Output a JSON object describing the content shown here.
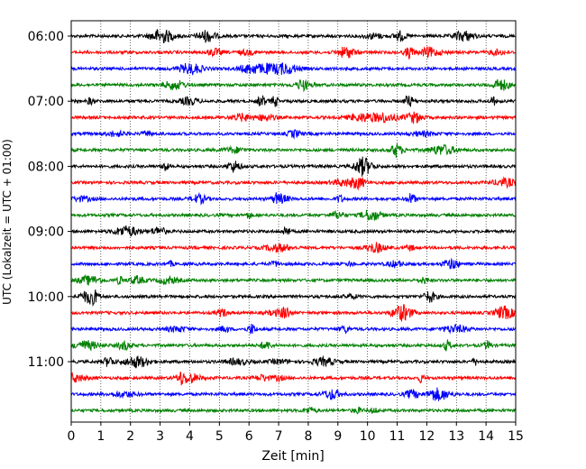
{
  "chart_data": {
    "type": "line",
    "title": "",
    "xlabel": "Zeit  [min]",
    "ylabel": "UTC (Lokalzeit = UTC + 01:00)",
    "xlim": [
      0,
      15
    ],
    "x_ticks": [
      "0",
      "1",
      "2",
      "3",
      "4",
      "5",
      "6",
      "7",
      "8",
      "9",
      "10",
      "11",
      "12",
      "13",
      "14",
      "15"
    ],
    "y_tick_labels": [
      "06:00",
      "07:00",
      "08:00",
      "09:00",
      "10:00",
      "11:00"
    ],
    "grid": "vertical dotted",
    "trace_interval_min": 15,
    "start_time": "06:00",
    "trace_colors": [
      "#000000",
      "#ff0000",
      "#0000ff",
      "#008000"
    ],
    "traces": [
      {
        "start": "06:00",
        "color": "#000000"
      },
      {
        "start": "06:15",
        "color": "#ff0000"
      },
      {
        "start": "06:30",
        "color": "#0000ff"
      },
      {
        "start": "06:45",
        "color": "#008000"
      },
      {
        "start": "07:00",
        "color": "#000000"
      },
      {
        "start": "07:15",
        "color": "#ff0000"
      },
      {
        "start": "07:30",
        "color": "#0000ff"
      },
      {
        "start": "07:45",
        "color": "#008000"
      },
      {
        "start": "08:00",
        "color": "#000000"
      },
      {
        "start": "08:15",
        "color": "#ff0000"
      },
      {
        "start": "08:30",
        "color": "#0000ff"
      },
      {
        "start": "08:45",
        "color": "#008000"
      },
      {
        "start": "09:00",
        "color": "#000000"
      },
      {
        "start": "09:15",
        "color": "#ff0000"
      },
      {
        "start": "09:30",
        "color": "#0000ff"
      },
      {
        "start": "09:45",
        "color": "#008000"
      },
      {
        "start": "10:00",
        "color": "#000000"
      },
      {
        "start": "10:15",
        "color": "#ff0000"
      },
      {
        "start": "10:30",
        "color": "#0000ff"
      },
      {
        "start": "10:45",
        "color": "#008000"
      },
      {
        "start": "11:00",
        "color": "#000000"
      },
      {
        "start": "11:15",
        "color": "#ff0000"
      },
      {
        "start": "11:30",
        "color": "#0000ff"
      },
      {
        "start": "11:45",
        "color": "#008000"
      }
    ]
  }
}
